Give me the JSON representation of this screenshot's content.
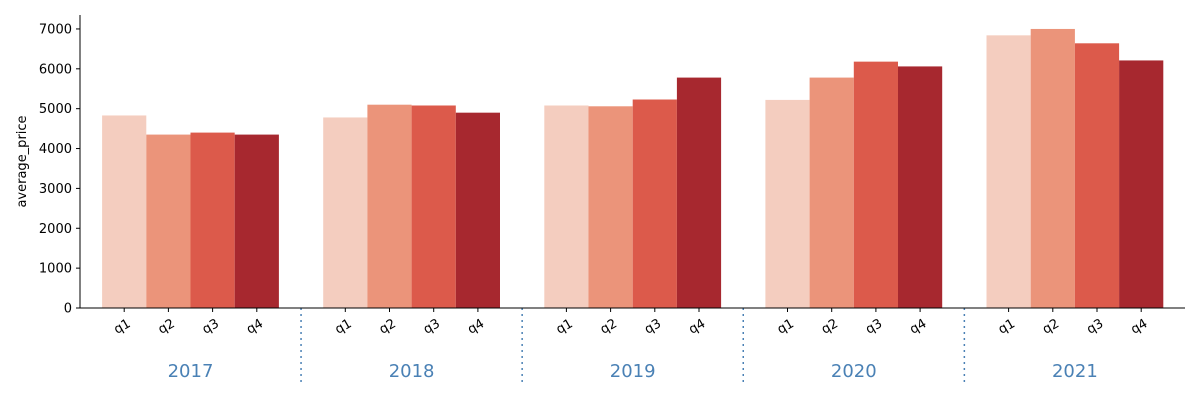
{
  "chart_data": {
    "type": "bar",
    "ylabel": "average_price",
    "ylim": [
      0,
      7350
    ],
    "yticks": [
      0,
      1000,
      2000,
      3000,
      4000,
      5000,
      6000,
      7000
    ],
    "groups": [
      "2017",
      "2018",
      "2019",
      "2020",
      "2021"
    ],
    "categories": [
      "q1",
      "q2",
      "q3",
      "q4"
    ],
    "series": [
      {
        "values": [
          4830,
          4350,
          4400,
          4350
        ],
        "color": "#f4cdbf"
      },
      {
        "values": [
          4780,
          5100,
          5080,
          4900
        ],
        "color": "#eb947a"
      },
      {
        "values": [
          5080,
          5060,
          5230,
          5780
        ],
        "color": "#dc5a4b"
      },
      {
        "values": [
          5220,
          5780,
          6180,
          6060
        ],
        "color": "#a7282f"
      },
      {
        "values": [
          6840,
          7000,
          6640,
          6210
        ],
        "color": "#a7282f"
      }
    ],
    "bar_colors": [
      "#f4cdbf",
      "#eb947a",
      "#dc5a4b",
      "#a7282f"
    ],
    "group_label_color": "#4a81b5",
    "separator_color": "#4a81b5",
    "grid": false
  }
}
